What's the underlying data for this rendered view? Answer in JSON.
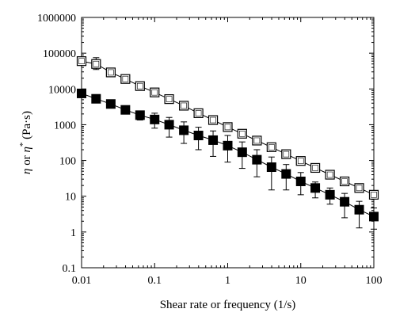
{
  "chart_data": {
    "type": "scatter",
    "xscale": "log",
    "yscale": "log",
    "xlim": [
      0.01,
      100
    ],
    "ylim": [
      0.1,
      1000000
    ],
    "xlabel": "Shear rate or frequency (1/s)",
    "ylabel": {
      "eta": "η",
      "or": " or ",
      "eta_star": "η",
      "star": "*",
      "unit": " (Pa·s)"
    },
    "x_ticks": [
      {
        "value": 0.01,
        "label": "0.01"
      },
      {
        "value": 0.1,
        "label": "0.1"
      },
      {
        "value": 1,
        "label": "1"
      },
      {
        "value": 10,
        "label": "10"
      },
      {
        "value": 100,
        "label": "100"
      }
    ],
    "y_ticks": [
      {
        "value": 0.1,
        "label": "0.1"
      },
      {
        "value": 1,
        "label": "1"
      },
      {
        "value": 10,
        "label": "10"
      },
      {
        "value": 100,
        "label": "100"
      },
      {
        "value": 1000,
        "label": "1000"
      },
      {
        "value": 10000,
        "label": "10000"
      },
      {
        "value": 100000,
        "label": "100000"
      },
      {
        "value": 1000000,
        "label": "1000000"
      }
    ],
    "grid": false,
    "legend": "none",
    "series": [
      {
        "marker": "open-square",
        "color": "#000000",
        "points": [
          {
            "x": 0.01,
            "y": 60000,
            "err_lo": 10000,
            "err_hi": 10000
          },
          {
            "x": 0.0158,
            "y": 50000,
            "err_lo": 15000,
            "err_hi": 25000
          },
          {
            "x": 0.0251,
            "y": 29000,
            "err_lo": 3000,
            "err_hi": 3000
          },
          {
            "x": 0.0398,
            "y": 19000,
            "err_lo": 3000,
            "err_hi": 3000
          },
          {
            "x": 0.0631,
            "y": 12000,
            "err_lo": 1500,
            "err_hi": 1500
          },
          {
            "x": 0.1,
            "y": 8000,
            "err_lo": 1000,
            "err_hi": 1000
          },
          {
            "x": 0.158,
            "y": 5200,
            "err_lo": 700,
            "err_hi": 700
          },
          {
            "x": 0.251,
            "y": 3400,
            "err_lo": 700,
            "err_hi": 900
          },
          {
            "x": 0.398,
            "y": 2100,
            "err_lo": 300,
            "err_hi": 300
          },
          {
            "x": 0.631,
            "y": 1350,
            "err_lo": 200,
            "err_hi": 200
          },
          {
            "x": 1.0,
            "y": 860,
            "err_lo": 120,
            "err_hi": 120
          },
          {
            "x": 1.58,
            "y": 560,
            "err_lo": 80,
            "err_hi": 80
          },
          {
            "x": 2.51,
            "y": 360,
            "err_lo": 50,
            "err_hi": 50
          },
          {
            "x": 3.98,
            "y": 235,
            "err_lo": 30,
            "err_hi": 30
          },
          {
            "x": 6.31,
            "y": 150,
            "err_lo": 20,
            "err_hi": 20
          },
          {
            "x": 10.0,
            "y": 97,
            "err_lo": 12,
            "err_hi": 12
          },
          {
            "x": 15.8,
            "y": 62,
            "err_lo": 8,
            "err_hi": 8
          },
          {
            "x": 25.1,
            "y": 40,
            "err_lo": 5,
            "err_hi": 5
          },
          {
            "x": 39.8,
            "y": 26,
            "err_lo": 3,
            "err_hi": 3
          },
          {
            "x": 63.1,
            "y": 17,
            "err_lo": 2,
            "err_hi": 2
          },
          {
            "x": 100.0,
            "y": 11,
            "err_lo": 1.5,
            "err_hi": 1.5
          }
        ]
      },
      {
        "marker": "filled-square",
        "color": "#000000",
        "points": [
          {
            "x": 0.01,
            "y": 7500,
            "err_lo": 800,
            "err_hi": 800
          },
          {
            "x": 0.0158,
            "y": 5300,
            "err_lo": 500,
            "err_hi": 500
          },
          {
            "x": 0.0251,
            "y": 3800,
            "err_lo": 400,
            "err_hi": 400
          },
          {
            "x": 0.0398,
            "y": 2600,
            "err_lo": 400,
            "err_hi": 400
          },
          {
            "x": 0.0631,
            "y": 1850,
            "err_lo": 500,
            "err_hi": 500
          },
          {
            "x": 0.1,
            "y": 1400,
            "err_lo": 600,
            "err_hi": 700
          },
          {
            "x": 0.158,
            "y": 1000,
            "err_lo": 550,
            "err_hi": 600
          },
          {
            "x": 0.251,
            "y": 700,
            "err_lo": 400,
            "err_hi": 500
          },
          {
            "x": 0.398,
            "y": 500,
            "err_lo": 300,
            "err_hi": 350
          },
          {
            "x": 0.631,
            "y": 370,
            "err_lo": 240,
            "err_hi": 300
          },
          {
            "x": 1.0,
            "y": 260,
            "err_lo": 170,
            "err_hi": 240
          },
          {
            "x": 1.58,
            "y": 170,
            "err_lo": 110,
            "err_hi": 160
          },
          {
            "x": 2.51,
            "y": 105,
            "err_lo": 70,
            "err_hi": 95
          },
          {
            "x": 3.98,
            "y": 65,
            "err_lo": 50,
            "err_hi": 60
          },
          {
            "x": 6.31,
            "y": 42,
            "err_lo": 27,
            "err_hi": 35
          },
          {
            "x": 10.0,
            "y": 26,
            "err_lo": 15,
            "err_hi": 20
          },
          {
            "x": 15.8,
            "y": 17,
            "err_lo": 8,
            "err_hi": 8
          },
          {
            "x": 25.1,
            "y": 11,
            "err_lo": 5,
            "err_hi": 6
          },
          {
            "x": 39.8,
            "y": 7,
            "err_lo": 4.5,
            "err_hi": 5
          },
          {
            "x": 63.1,
            "y": 4.2,
            "err_lo": 2.9,
            "err_hi": 3
          },
          {
            "x": 100.0,
            "y": 2.7,
            "err_lo": 1.5,
            "err_hi": 2
          }
        ]
      }
    ]
  }
}
